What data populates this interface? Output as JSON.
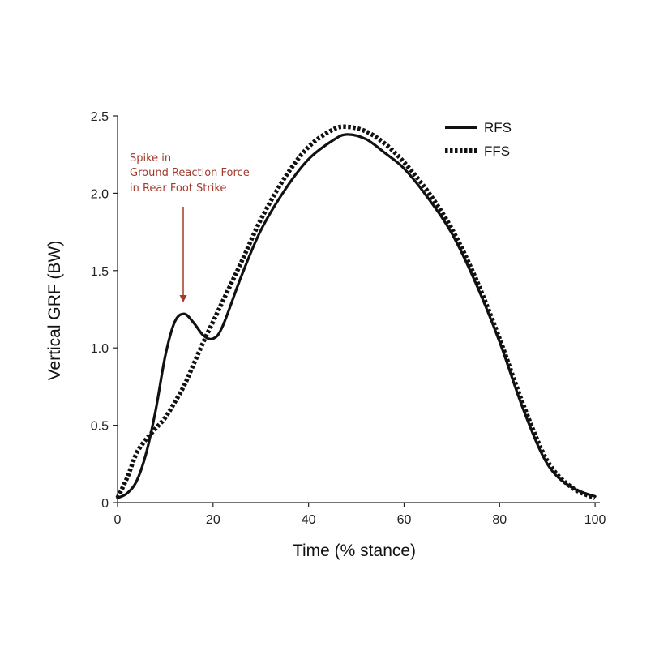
{
  "chart_data": {
    "type": "line",
    "xlabel": "Time (% stance)",
    "ylabel": "Vertical GRF (BW)",
    "xlim": [
      0,
      101
    ],
    "ylim": [
      0,
      2.5
    ],
    "x_ticks": [
      "0",
      "20",
      "40",
      "60",
      "80",
      "100"
    ],
    "x_tick_values": [
      0,
      20,
      40,
      60,
      80,
      100
    ],
    "y_ticks": [
      "0",
      "0.5",
      "1.0",
      "1.5",
      "2.0",
      "2.5"
    ],
    "y_tick_values": [
      0,
      0.5,
      1.0,
      1.5,
      2.0,
      2.5
    ],
    "grid": false,
    "legend_position": "top-right",
    "series": [
      {
        "name": "RFS",
        "style": "solid",
        "color": "#111111",
        "x": [
          0,
          2,
          4,
          6,
          8,
          10,
          12,
          14,
          16,
          18,
          20,
          22,
          26,
          30,
          35,
          40,
          45,
          48,
          52,
          56,
          60,
          65,
          70,
          75,
          80,
          85,
          90,
          95,
          100
        ],
        "y": [
          0.03,
          0.06,
          0.14,
          0.32,
          0.6,
          0.95,
          1.17,
          1.22,
          1.16,
          1.08,
          1.06,
          1.14,
          1.47,
          1.76,
          2.02,
          2.22,
          2.34,
          2.38,
          2.35,
          2.26,
          2.16,
          1.97,
          1.74,
          1.42,
          1.04,
          0.6,
          0.25,
          0.1,
          0.04
        ]
      },
      {
        "name": "FFS",
        "style": "dotted",
        "color": "#111111",
        "x": [
          0,
          2,
          4,
          6,
          8,
          10,
          12,
          14,
          16,
          18,
          20,
          22,
          26,
          30,
          35,
          40,
          45,
          48,
          52,
          56,
          60,
          65,
          70,
          75,
          80,
          85,
          90,
          95,
          100
        ],
        "y": [
          0.03,
          0.16,
          0.32,
          0.41,
          0.48,
          0.55,
          0.65,
          0.76,
          0.9,
          1.04,
          1.17,
          1.3,
          1.56,
          1.83,
          2.1,
          2.3,
          2.41,
          2.43,
          2.4,
          2.32,
          2.2,
          2.01,
          1.77,
          1.45,
          1.06,
          0.63,
          0.27,
          0.1,
          0.03
        ]
      }
    ],
    "annotation": {
      "lines": [
        "Spike in",
        "Ground Reaction Force",
        "in Rear Foot Strike"
      ],
      "color": "#a33a2c",
      "points_to": {
        "x": 14,
        "y": 1.22
      }
    }
  }
}
